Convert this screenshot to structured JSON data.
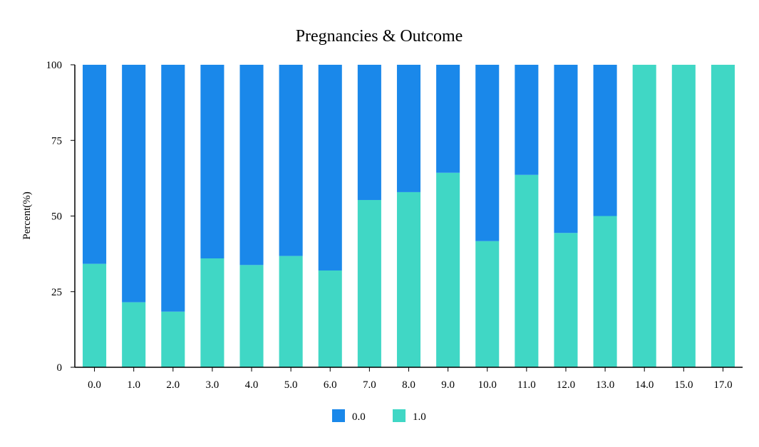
{
  "chart_data": {
    "type": "bar",
    "stacked": true,
    "title": "Pregnancies & Outcome",
    "xlabel": "",
    "ylabel": "Percent(%)",
    "ylim": [
      0,
      100
    ],
    "yticks": [
      0,
      25,
      50,
      75,
      100
    ],
    "grid": false,
    "legend_position": "bottom-center",
    "categories": [
      "0.0",
      "1.0",
      "2.0",
      "3.0",
      "4.0",
      "5.0",
      "6.0",
      "7.0",
      "8.0",
      "9.0",
      "10.0",
      "11.0",
      "12.0",
      "13.0",
      "14.0",
      "15.0",
      "17.0"
    ],
    "series": [
      {
        "name": "1.0",
        "color": "#40d7c5",
        "values": [
          34.2,
          21.5,
          18.4,
          36.0,
          33.8,
          36.8,
          32.0,
          55.3,
          57.9,
          64.3,
          41.7,
          63.6,
          44.4,
          50.0,
          100,
          100,
          100
        ]
      },
      {
        "name": "0.0",
        "color": "#1a88ea",
        "values": [
          65.8,
          78.5,
          81.6,
          64.0,
          66.2,
          63.2,
          68.0,
          44.7,
          42.1,
          35.7,
          58.3,
          36.4,
          55.6,
          50.0,
          0,
          0,
          0
        ]
      }
    ],
    "legend": [
      {
        "name": "0.0",
        "color": "#1a88ea"
      },
      {
        "name": "1.0",
        "color": "#40d7c5"
      }
    ]
  }
}
